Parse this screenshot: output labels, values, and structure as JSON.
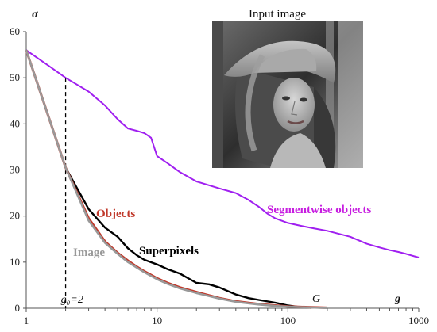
{
  "chart_data": {
    "type": "line",
    "xscale": "log",
    "xlim": [
      1,
      1000
    ],
    "ylim": [
      0,
      60
    ],
    "xticks": [
      1,
      10,
      100,
      1000
    ],
    "yticks": [
      0,
      10,
      20,
      30,
      40,
      50,
      60
    ],
    "xtick_labels": [
      "1",
      "10",
      "100",
      "1000"
    ],
    "ytick_labels": [
      "0",
      "10",
      "20",
      "30",
      "40",
      "50",
      "60"
    ],
    "xlabel": "g",
    "ylabel": "σ",
    "grid": false,
    "series": [
      {
        "name": "Segmentwise objects",
        "color": "#a020f0",
        "x": [
          1,
          1.5,
          2,
          3,
          4,
          5,
          6,
          7,
          8,
          9,
          10,
          12,
          15,
          20,
          30,
          40,
          50,
          60,
          70,
          80,
          100,
          130,
          160,
          200,
          300,
          400,
          500,
          600,
          700,
          800,
          1000
        ],
        "y": [
          56,
          52.5,
          50,
          47,
          44,
          41,
          39,
          38.5,
          38,
          37,
          33,
          31.5,
          29.5,
          27.5,
          26,
          25,
          23.5,
          22,
          20.5,
          19.5,
          18.5,
          17.8,
          17.3,
          16.8,
          15.5,
          14,
          13.2,
          12.6,
          12.2,
          11.8,
          11
        ]
      },
      {
        "name": "Superpixels",
        "color": "#000000",
        "x": [
          1,
          2,
          3,
          4,
          5,
          6,
          7,
          8,
          10,
          12,
          15,
          20,
          25,
          30,
          40,
          50,
          60,
          80,
          100,
          120,
          150
        ],
        "y": [
          56,
          30.5,
          21.5,
          17.5,
          15.5,
          13,
          11.5,
          10.5,
          9.5,
          8.5,
          7.5,
          5.5,
          5.2,
          4.5,
          3,
          2.2,
          1.8,
          1.2,
          0.6,
          0.3,
          0.1
        ]
      },
      {
        "name": "Objects",
        "color": "#c0392b",
        "x": [
          1,
          2,
          3,
          4,
          5,
          6,
          7,
          8,
          10,
          12,
          15,
          20,
          30,
          40,
          60,
          80,
          100,
          150,
          200
        ],
        "y": [
          56,
          30.5,
          19.5,
          14.5,
          12,
          10.3,
          9,
          8,
          6.5,
          5.5,
          4.5,
          3.5,
          2.2,
          1.5,
          0.9,
          0.6,
          0.4,
          0.2,
          0.1
        ]
      },
      {
        "name": "Image",
        "color": "#999999",
        "x": [
          1,
          2,
          3,
          4,
          5,
          6,
          7,
          8,
          10,
          12,
          15,
          20,
          30,
          40,
          60,
          80,
          100,
          150,
          200
        ],
        "y": [
          56,
          30.5,
          19,
          14.2,
          11.8,
          10,
          8.8,
          7.8,
          6.3,
          5.3,
          4.3,
          3.3,
          2.1,
          1.4,
          0.8,
          0.5,
          0.35,
          0.15,
          0.05
        ]
      }
    ],
    "annotations": {
      "g0": "g₀=2",
      "G": "G",
      "inset_title": "Input image",
      "labels": [
        {
          "series": "Segmentwise objects",
          "text": "Segmentwise objects",
          "color": "#c71ee0"
        },
        {
          "series": "Superpixels",
          "text": "Superpixels",
          "color": "#000000"
        },
        {
          "series": "Objects",
          "text": "Objects",
          "color": "#c0392b"
        },
        {
          "series": "Image",
          "text": "Image",
          "color": "#999999"
        }
      ]
    },
    "g0_marker": 2
  }
}
